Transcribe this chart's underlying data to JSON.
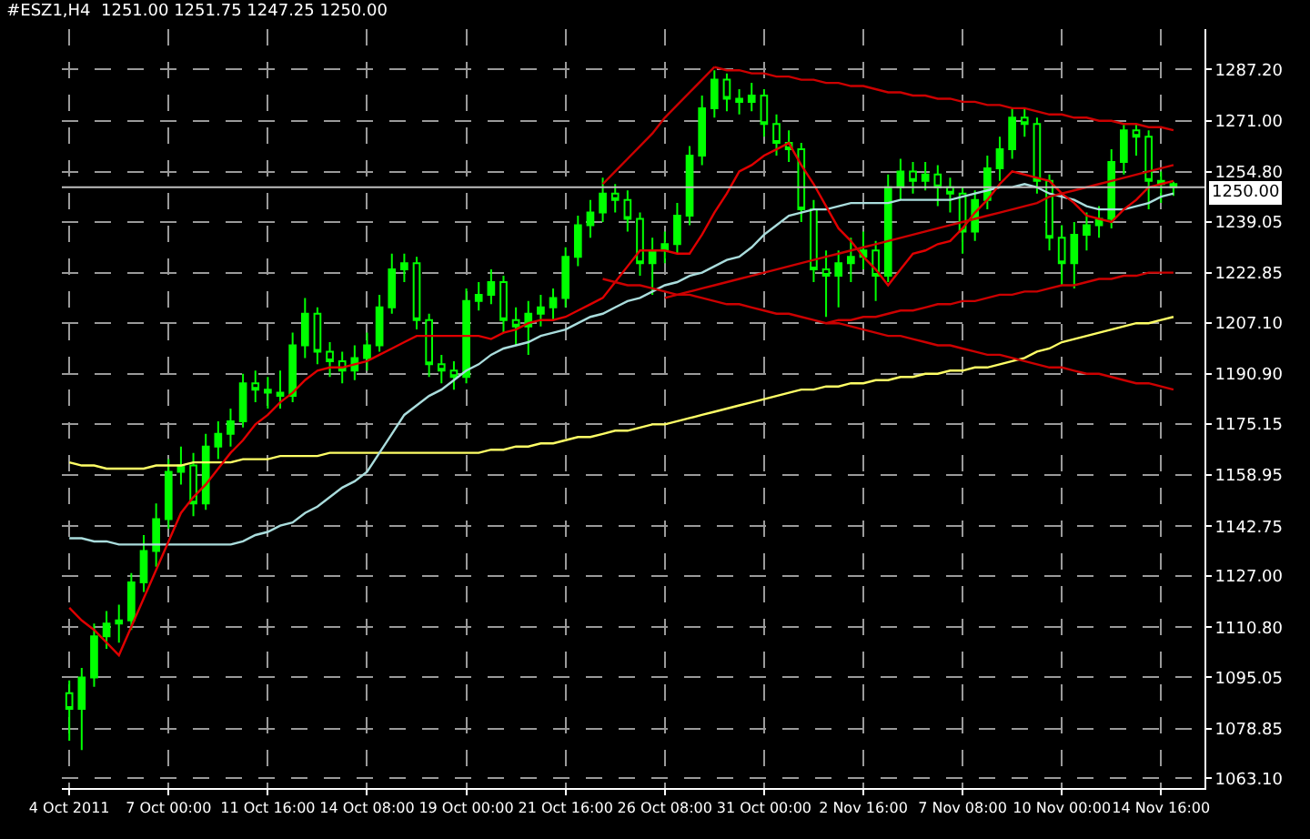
{
  "chart_data": {
    "type": "candlestick",
    "title": "#ESZ1,H4  1251.00 1251.75 1247.25 1250.00",
    "categories": [
      "4 Oct 2011",
      null,
      null,
      null,
      null,
      null,
      null,
      null,
      "7 Oct 00:00",
      null,
      null,
      null,
      null,
      null,
      null,
      null,
      "11 Oct 16:00",
      null,
      null,
      null,
      null,
      null,
      null,
      null,
      "14 Oct 08:00",
      null,
      null,
      null,
      null,
      null,
      null,
      null,
      "19 Oct 00:00",
      null,
      null,
      null,
      null,
      null,
      null,
      null,
      "21 Oct 16:00",
      null,
      null,
      null,
      null,
      null,
      null,
      null,
      "26 Oct 08:00",
      null,
      null,
      null,
      null,
      null,
      null,
      null,
      "31 Oct 00:00",
      null,
      null,
      null,
      null,
      null,
      null,
      null,
      "2 Nov 16:00",
      null,
      null,
      null,
      null,
      null,
      null,
      null,
      "7 Nov 08:00",
      null,
      null,
      null,
      null,
      null,
      null,
      null,
      "10 Nov 00:00",
      null,
      null,
      null,
      null,
      null,
      null,
      null,
      "14 Nov 16:00",
      null
    ],
    "color": "#00ff00",
    "ohlc": [
      [
        1090,
        1094,
        1075,
        1085
      ],
      [
        1085,
        1098,
        1072,
        1095
      ],
      [
        1095,
        1112,
        1092,
        1108
      ],
      [
        1108,
        1116,
        1104,
        1112
      ],
      [
        1112,
        1118,
        1106,
        1113
      ],
      [
        1113,
        1128,
        1110,
        1125
      ],
      [
        1125,
        1140,
        1122,
        1135
      ],
      [
        1135,
        1150,
        1130,
        1145
      ],
      [
        1145,
        1164,
        1142,
        1160
      ],
      [
        1160,
        1168,
        1156,
        1162
      ],
      [
        1162,
        1166,
        1146,
        1150
      ],
      [
        1150,
        1172,
        1148,
        1168
      ],
      [
        1168,
        1176,
        1164,
        1172
      ],
      [
        1172,
        1180,
        1168,
        1176
      ],
      [
        1176,
        1191,
        1174,
        1188
      ],
      [
        1188,
        1192,
        1182,
        1186
      ],
      [
        1186,
        1190,
        1180,
        1185
      ],
      [
        1185,
        1192,
        1180,
        1184
      ],
      [
        1184,
        1204,
        1182,
        1200
      ],
      [
        1200,
        1215,
        1196,
        1210
      ],
      [
        1210,
        1212,
        1194,
        1198
      ],
      [
        1198,
        1201,
        1190,
        1195
      ],
      [
        1195,
        1198,
        1188,
        1192
      ],
      [
        1192,
        1200,
        1189,
        1196
      ],
      [
        1196,
        1204,
        1192,
        1200
      ],
      [
        1200,
        1216,
        1198,
        1212
      ],
      [
        1212,
        1229,
        1210,
        1224
      ],
      [
        1224,
        1229,
        1220,
        1226
      ],
      [
        1226,
        1228,
        1205,
        1208
      ],
      [
        1208,
        1210,
        1190,
        1194
      ],
      [
        1194,
        1197,
        1188,
        1192
      ],
      [
        1192,
        1195,
        1186,
        1190
      ],
      [
        1190,
        1218,
        1188,
        1214
      ],
      [
        1214,
        1220,
        1211,
        1216
      ],
      [
        1216,
        1224,
        1213,
        1220
      ],
      [
        1220,
        1222,
        1204,
        1208
      ],
      [
        1208,
        1212,
        1200,
        1206
      ],
      [
        1206,
        1214,
        1197,
        1210
      ],
      [
        1210,
        1216,
        1206,
        1212
      ],
      [
        1212,
        1218,
        1208,
        1215
      ],
      [
        1215,
        1231,
        1212,
        1228
      ],
      [
        1228,
        1241,
        1225,
        1238
      ],
      [
        1238,
        1246,
        1234,
        1242
      ],
      [
        1242,
        1253,
        1239,
        1248
      ],
      [
        1248,
        1251,
        1242,
        1246
      ],
      [
        1246,
        1249,
        1236,
        1240
      ],
      [
        1240,
        1242,
        1222,
        1226
      ],
      [
        1226,
        1234,
        1216,
        1230
      ],
      [
        1230,
        1236,
        1226,
        1232
      ],
      [
        1232,
        1245,
        1229,
        1241
      ],
      [
        1241,
        1263,
        1238,
        1260
      ],
      [
        1260,
        1279,
        1257,
        1275
      ],
      [
        1275,
        1287,
        1272,
        1284
      ],
      [
        1284,
        1286,
        1274,
        1278
      ],
      [
        1278,
        1281,
        1273,
        1277
      ],
      [
        1277,
        1283,
        1274,
        1279
      ],
      [
        1279,
        1281,
        1266,
        1270
      ],
      [
        1270,
        1273,
        1260,
        1264
      ],
      [
        1264,
        1268,
        1258,
        1262
      ],
      [
        1262,
        1264,
        1239,
        1243
      ],
      [
        1243,
        1246,
        1220,
        1224
      ],
      [
        1224,
        1230,
        1209,
        1222
      ],
      [
        1222,
        1230,
        1212,
        1226
      ],
      [
        1226,
        1234,
        1220,
        1228
      ],
      [
        1228,
        1236,
        1224,
        1230
      ],
      [
        1230,
        1233,
        1214,
        1222
      ],
      [
        1222,
        1254,
        1220,
        1250
      ],
      [
        1250,
        1259,
        1246,
        1255
      ],
      [
        1255,
        1258,
        1248,
        1252
      ],
      [
        1252,
        1258,
        1249,
        1254
      ],
      [
        1254,
        1257,
        1244,
        1250
      ],
      [
        1250,
        1253,
        1242,
        1248
      ],
      [
        1248,
        1250,
        1229,
        1236
      ],
      [
        1236,
        1249,
        1233,
        1246
      ],
      [
        1246,
        1260,
        1243,
        1256
      ],
      [
        1256,
        1266,
        1252,
        1262
      ],
      [
        1262,
        1275,
        1259,
        1272
      ],
      [
        1272,
        1275,
        1266,
        1270
      ],
      [
        1270,
        1272,
        1248,
        1252
      ],
      [
        1252,
        1254,
        1230,
        1234
      ],
      [
        1234,
        1238,
        1219,
        1226
      ],
      [
        1226,
        1239,
        1218,
        1235
      ],
      [
        1235,
        1242,
        1230,
        1238
      ],
      [
        1238,
        1244,
        1234,
        1240
      ],
      [
        1240,
        1262,
        1237,
        1258
      ],
      [
        1258,
        1270,
        1254,
        1268
      ],
      [
        1268,
        1270,
        1260,
        1266
      ],
      [
        1266,
        1268,
        1243,
        1252
      ],
      [
        1252,
        1255,
        1245,
        1251
      ],
      [
        1251.0,
        1251.75,
        1247.25,
        1250.0
      ]
    ],
    "series": [
      {
        "type": "line",
        "color": "#ffff66",
        "values": [
          1163,
          1162,
          1162,
          1161,
          1161,
          1161,
          1161,
          1162,
          1162,
          1162,
          1163,
          1163,
          1163,
          1163,
          1164,
          1164,
          1164,
          1165,
          1165,
          1165,
          1165,
          1166,
          1166,
          1166,
          1166,
          1166,
          1166,
          1166,
          1166,
          1166,
          1166,
          1166,
          1166,
          1166,
          1167,
          1167,
          1168,
          1168,
          1169,
          1169,
          1170,
          1171,
          1171,
          1172,
          1173,
          1173,
          1174,
          1175,
          1175,
          1176,
          1177,
          1178,
          1179,
          1180,
          1181,
          1182,
          1183,
          1184,
          1185,
          1186,
          1186,
          1187,
          1187,
          1188,
          1188,
          1189,
          1189,
          1190,
          1190,
          1191,
          1191,
          1192,
          1192,
          1193,
          1193,
          1194,
          1195,
          1196,
          1198,
          1199,
          1201,
          1202,
          1203,
          1204,
          1205,
          1206,
          1207,
          1207,
          1208,
          1209
        ]
      },
      {
        "type": "line",
        "color": "#aadddd",
        "values": [
          1139,
          1139,
          1138,
          1138,
          1137,
          1137,
          1137,
          1137,
          1137,
          1137,
          1137,
          1137,
          1137,
          1137,
          1138,
          1140,
          1141,
          1143,
          1144,
          1147,
          1149,
          1152,
          1155,
          1157,
          1160,
          1166,
          1172,
          1178,
          1181,
          1184,
          1186,
          1189,
          1192,
          1194,
          1197,
          1199,
          1200,
          1201,
          1203,
          1204,
          1205,
          1207,
          1209,
          1210,
          1212,
          1214,
          1215,
          1217,
          1219,
          1220,
          1222,
          1223,
          1225,
          1227,
          1228,
          1231,
          1235,
          1238,
          1241,
          1242,
          1243,
          1243,
          1244,
          1245,
          1245,
          1245,
          1245,
          1246,
          1246,
          1246,
          1246,
          1246,
          1247,
          1248,
          1249,
          1250,
          1250,
          1251,
          1250,
          1248,
          1247,
          1246,
          1244,
          1243,
          1243,
          1243,
          1244,
          1245,
          1247,
          1248
        ]
      },
      {
        "type": "line",
        "color": "#e00000",
        "values": [
          1117,
          1113,
          1110,
          1106,
          1102,
          1111,
          1120,
          1129,
          1138,
          1147,
          1152,
          1156,
          1161,
          1166,
          1170,
          1175,
          1178,
          1182,
          1185,
          1189,
          1192,
          1193,
          1193,
          1194,
          1195,
          1197,
          1199,
          1201,
          1203,
          1203,
          1203,
          1203,
          1203,
          1203,
          1202,
          1204,
          1205,
          1207,
          1208,
          1208,
          1209,
          1211,
          1213,
          1215,
          1220,
          1225,
          1230,
          1230,
          1230,
          1229,
          1229,
          1235,
          1242,
          1248,
          1255,
          1257,
          1260,
          1262,
          1264,
          1257,
          1251,
          1244,
          1237,
          1233,
          1228,
          1224,
          1219,
          1224,
          1229,
          1230,
          1232,
          1233,
          1237,
          1242,
          1246,
          1251,
          1255,
          1254,
          1253,
          1252,
          1248,
          1245,
          1241,
          1240,
          1239,
          1243,
          1246,
          1250,
          1251,
          1252
        ]
      },
      {
        "type": "line",
        "color": "#cc0000",
        "values": [
          null,
          null,
          null,
          null,
          null,
          null,
          null,
          null,
          null,
          null,
          null,
          null,
          null,
          null,
          null,
          null,
          null,
          null,
          null,
          null,
          null,
          null,
          null,
          null,
          null,
          null,
          null,
          null,
          null,
          null,
          null,
          null,
          null,
          null,
          null,
          null,
          null,
          null,
          null,
          null,
          null,
          null,
          null,
          1251,
          1255,
          1259,
          1263,
          1267,
          1272,
          1276,
          1280,
          1284,
          1288,
          null,
          null,
          null,
          null,
          null,
          null,
          null,
          null,
          null,
          null,
          null,
          null,
          null,
          null,
          null,
          null,
          null,
          null,
          null,
          null,
          null,
          null,
          null,
          null,
          null,
          null,
          null,
          null,
          null,
          null,
          null,
          null,
          null,
          null,
          null,
          null,
          null
        ]
      },
      {
        "type": "line",
        "color": "#cc0000",
        "values": [
          null,
          null,
          null,
          null,
          null,
          null,
          null,
          null,
          null,
          null,
          null,
          null,
          null,
          null,
          null,
          null,
          null,
          null,
          null,
          null,
          null,
          null,
          null,
          null,
          null,
          null,
          null,
          null,
          null,
          null,
          null,
          null,
          null,
          null,
          null,
          null,
          null,
          null,
          null,
          null,
          null,
          null,
          null,
          null,
          null,
          null,
          null,
          null,
          null,
          null,
          null,
          null,
          1288,
          1287,
          1287,
          1286,
          1286,
          1285,
          1285,
          1284,
          1284,
          1283,
          1283,
          1282,
          1282,
          1281,
          1280,
          1280,
          1279,
          1279,
          1278,
          1278,
          1277,
          1277,
          1276,
          1276,
          1275,
          1275,
          1274,
          1273,
          1273,
          1272,
          1272,
          1271,
          1271,
          1270,
          1270,
          1269,
          1269,
          1268
        ]
      },
      {
        "type": "line",
        "color": "#cc0000",
        "values": [
          null,
          null,
          null,
          null,
          null,
          null,
          null,
          null,
          null,
          null,
          null,
          null,
          null,
          null,
          null,
          null,
          null,
          null,
          null,
          null,
          null,
          null,
          null,
          null,
          null,
          null,
          null,
          null,
          null,
          null,
          null,
          null,
          null,
          null,
          null,
          null,
          null,
          null,
          null,
          null,
          null,
          null,
          null,
          1221,
          1220,
          1219,
          1219,
          1218,
          1217,
          1216,
          1216,
          1215,
          1214,
          1213,
          1213,
          1212,
          1211,
          1210,
          1210,
          1209,
          1208,
          1207,
          1207,
          1206,
          1205,
          1204,
          1203,
          1203,
          1202,
          1201,
          1200,
          1200,
          1199,
          1198,
          1197,
          1197,
          1196,
          1195,
          1194,
          1193,
          1193,
          1192,
          1191,
          1191,
          1190,
          1189,
          1188,
          1188,
          1187,
          1186
        ]
      },
      {
        "type": "line",
        "color": "#cc0000",
        "values": [
          null,
          null,
          null,
          null,
          null,
          null,
          null,
          null,
          null,
          null,
          null,
          null,
          null,
          null,
          null,
          null,
          null,
          null,
          null,
          null,
          null,
          null,
          null,
          null,
          null,
          null,
          null,
          null,
          null,
          null,
          null,
          null,
          null,
          null,
          null,
          null,
          null,
          null,
          null,
          null,
          null,
          null,
          null,
          null,
          null,
          null,
          null,
          null,
          1215,
          1216,
          1217,
          1218,
          1219,
          1220,
          1221,
          1222,
          1223,
          1224,
          1225,
          1226,
          1227,
          1228,
          1229,
          1230,
          1231,
          1232,
          1233,
          1234,
          1235,
          1236,
          1237,
          1238,
          1239,
          1240,
          1241,
          1242,
          1243,
          1244,
          1245,
          1247,
          1248,
          1249,
          1250,
          1251,
          1252,
          1253,
          1254,
          1255,
          1256,
          1257
        ]
      },
      {
        "type": "line",
        "color": "#cc0000",
        "values": [
          null,
          null,
          null,
          null,
          null,
          null,
          null,
          null,
          null,
          null,
          null,
          null,
          null,
          null,
          null,
          null,
          null,
          null,
          null,
          null,
          null,
          null,
          null,
          null,
          null,
          null,
          null,
          null,
          null,
          null,
          null,
          null,
          null,
          null,
          null,
          null,
          null,
          null,
          null,
          null,
          null,
          null,
          null,
          null,
          null,
          null,
          null,
          null,
          null,
          null,
          null,
          null,
          null,
          null,
          null,
          null,
          null,
          null,
          null,
          null,
          null,
          1207,
          1208,
          1208,
          1209,
          1209,
          1210,
          1211,
          1211,
          1212,
          1213,
          1213,
          1214,
          1214,
          1215,
          1216,
          1216,
          1217,
          1217,
          1218,
          1219,
          1219,
          1220,
          1221,
          1221,
          1222,
          1222,
          1223,
          1223,
          1223
        ]
      }
    ],
    "ylim": [
      1060,
      1300
    ],
    "yticks": [
      {
        "value": 1063.1,
        "label": "1063.10"
      },
      {
        "value": 1078.85,
        "label": "1078.85"
      },
      {
        "value": 1095.05,
        "label": "1095.05"
      },
      {
        "value": 1110.8,
        "label": "1110.80"
      },
      {
        "value": 1127.0,
        "label": "1127.00"
      },
      {
        "value": 1142.75,
        "label": "1142.75"
      },
      {
        "value": 1158.95,
        "label": "1158.95"
      },
      {
        "value": 1175.15,
        "label": "1175.15"
      },
      {
        "value": 1190.9,
        "label": "1190.90"
      },
      {
        "value": 1207.1,
        "label": "1207.10"
      },
      {
        "value": 1222.85,
        "label": "1222.85"
      },
      {
        "value": 1239.05,
        "label": "1239.05"
      },
      {
        "value": 1254.8,
        "label": "1254.80"
      },
      {
        "value": 1271.0,
        "label": "1271.00"
      },
      {
        "value": 1287.2,
        "label": "1287.20"
      }
    ],
    "ref_lines": [
      {
        "axis": "y",
        "value": 1250.0,
        "label": "1250.00",
        "color": "#c0c0c0"
      }
    ],
    "grid": true
  }
}
